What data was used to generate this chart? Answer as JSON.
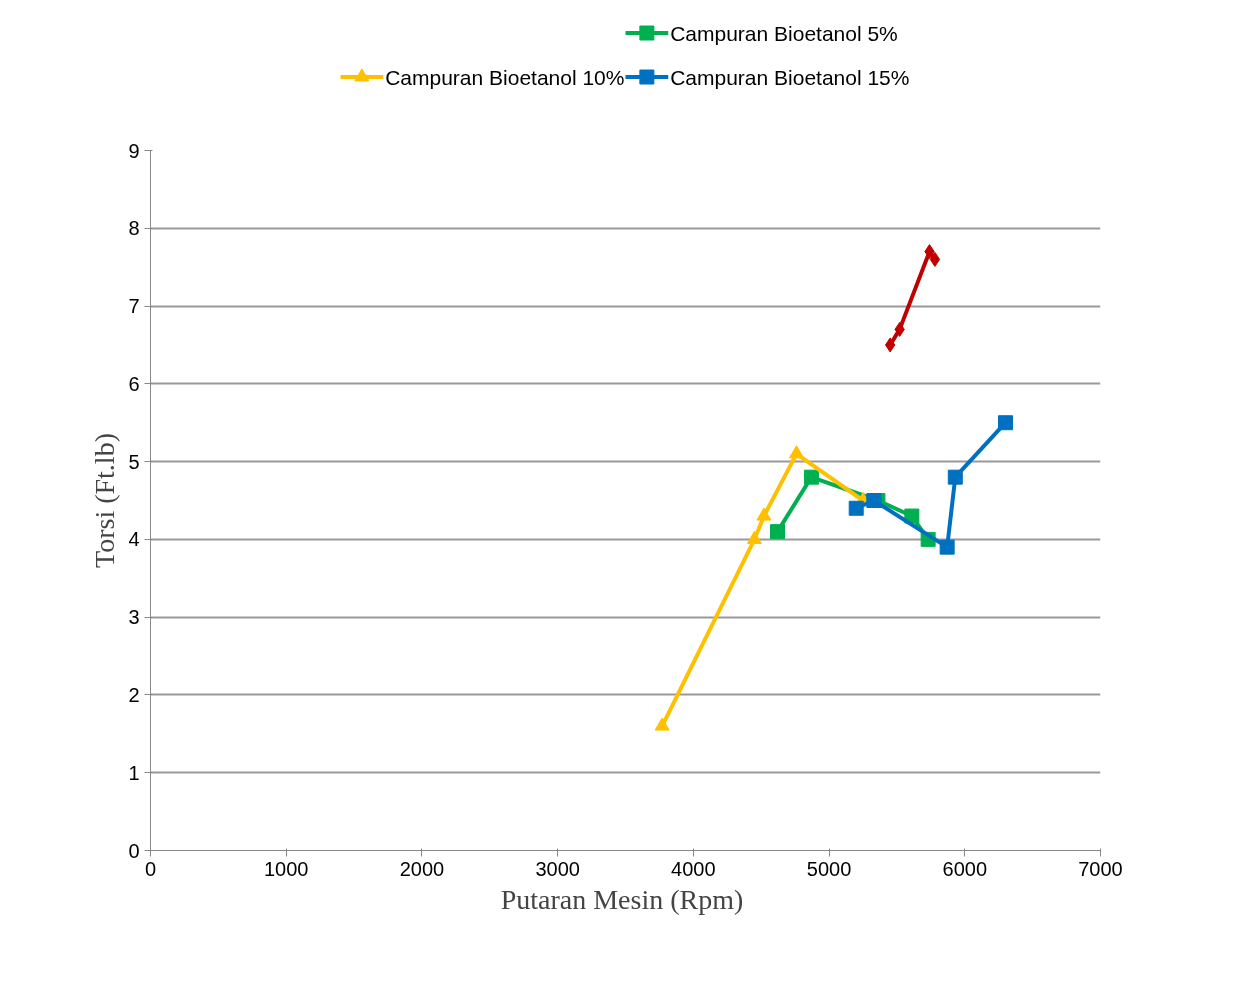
{
  "chart_data": {
    "type": "line",
    "xlabel": "Putaran Mesin  (Rpm)",
    "ylabel": "Torsi (Ft.lb)",
    "xlim": [
      0,
      7000
    ],
    "xticks": [
      0,
      1000,
      2000,
      3000,
      4000,
      5000,
      6000,
      7000
    ],
    "ylim": [
      0,
      9
    ],
    "yticks": [
      0,
      1,
      2,
      3,
      4,
      5,
      6,
      7,
      8,
      9
    ],
    "grid": "y",
    "legend": "top",
    "series": [
      {
        "color": "#c00000",
        "marker": "diamond",
        "x": [
          5450,
          5520,
          5740,
          5780
        ],
        "values": [
          6.5,
          6.7,
          7.7,
          7.6
        ]
      },
      {
        "name": "Campuran Bioetanol 5%",
        "color": "#00b050",
        "marker": "square",
        "x": [
          4620,
          4870,
          5360,
          5610,
          5730
        ],
        "values": [
          4.1,
          4.8,
          4.5,
          4.3,
          4.0
        ]
      },
      {
        "name": "Campuran Bioetanol 10%",
        "color": "#ffc000",
        "marker": "triangle",
        "x": [
          3770,
          4450,
          4520,
          4760,
          5250
        ],
        "values": [
          1.6,
          4.0,
          4.3,
          5.1,
          4.5
        ]
      },
      {
        "name": "Campuran Bioetanol 15%",
        "color": "#0070c0",
        "marker": "square",
        "x": [
          5200,
          5330,
          5870,
          5930,
          6300
        ],
        "values": [
          4.4,
          4.5,
          3.9,
          4.8,
          5.5
        ]
      }
    ]
  }
}
